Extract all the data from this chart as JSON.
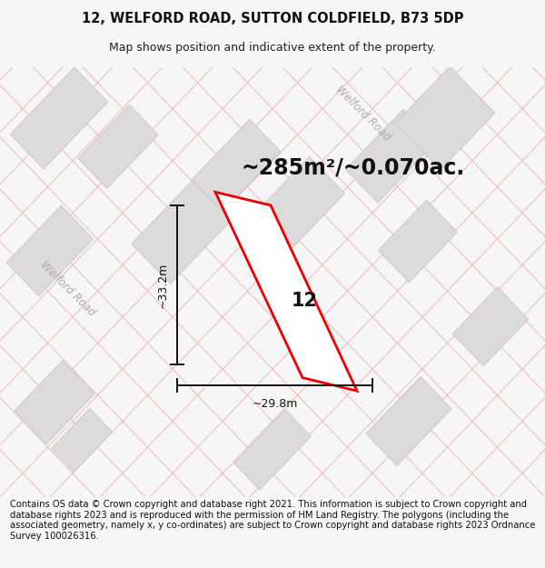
{
  "title": "12, WELFORD ROAD, SUTTON COLDFIELD, B73 5DP",
  "subtitle": "Map shows position and indicative extent of the property.",
  "area_text": "~285m²/~0.070ac.",
  "property_number": "12",
  "dim_height": "~33.2m",
  "dim_width": "~29.8m",
  "road_label": "Welford Road",
  "footer": "Contains OS data © Crown copyright and database right 2021. This information is subject to Crown copyright and database rights 2023 and is reproduced with the permission of HM Land Registry. The polygons (including the associated geometry, namely x, y co-ordinates) are subject to Crown copyright and database rights 2023 Ordnance Survey 100026316.",
  "bg_color": "#f7f6f6",
  "map_bg": "#f2f0f0",
  "block_color": "#dcdada",
  "block_edge": "#c8c5c5",
  "road_line_color": "#f0b8b8",
  "property_edge": "#ee0000",
  "dim_line_color": "#111111",
  "title_fontsize": 10.5,
  "subtitle_fontsize": 9,
  "area_fontsize": 17,
  "footer_fontsize": 7.2,
  "road_label_color": "#b0aaaa",
  "road_lw": 0.7,
  "block_lw": 0.6,
  "prop_lw": 2.0,
  "dim_lw": 1.4
}
